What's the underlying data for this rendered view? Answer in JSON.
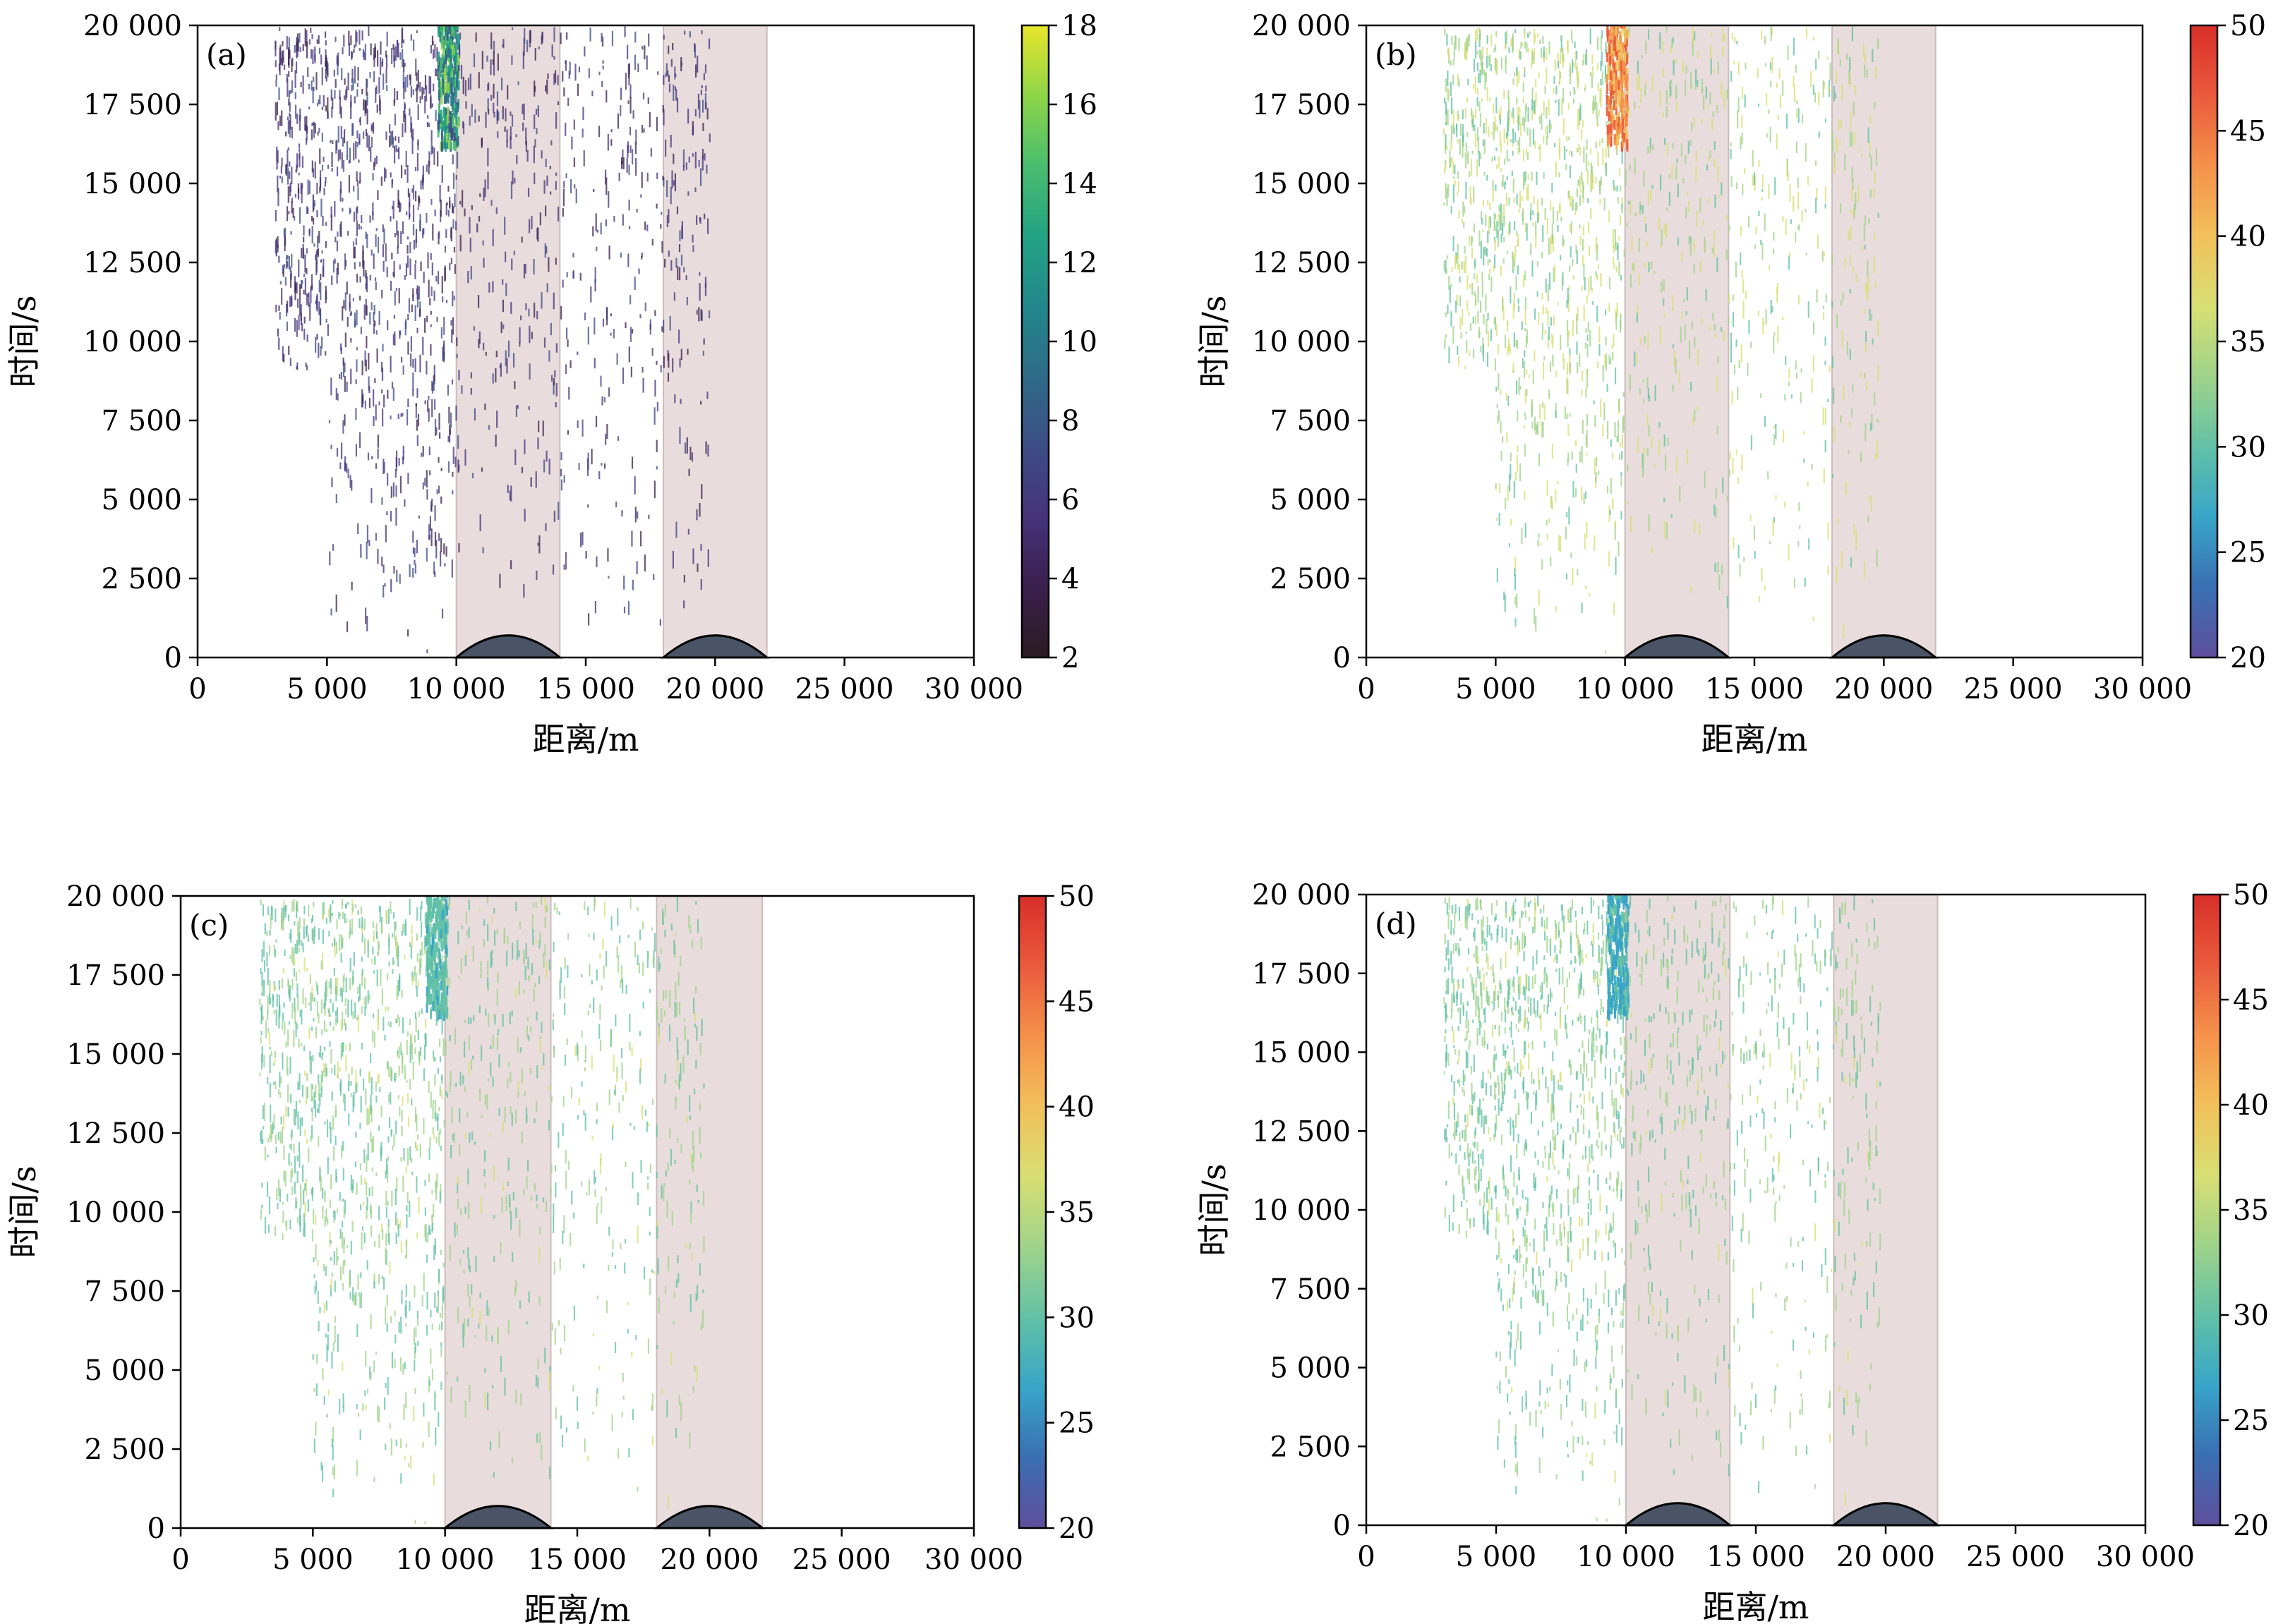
{
  "chart_data": [
    {
      "type": "heatmap",
      "panel_label": "(a)",
      "xlabel": "距离/m",
      "ylabel": "时间/s",
      "xlim": [
        0,
        30000
      ],
      "ylim": [
        0,
        20000
      ],
      "xticks": [
        "0",
        "5 000",
        "10 000",
        "15 000",
        "20 000",
        "25 000",
        "30 000"
      ],
      "yticks": [
        "0",
        "2 500",
        "5 000",
        "7 500",
        "10 000",
        "12 500",
        "15 000",
        "17 500",
        "20 000"
      ],
      "colorbar": {
        "colormap": "viridis",
        "min": 2,
        "max": 18,
        "ticks": [
          "2",
          "4",
          "6",
          "8",
          "10",
          "12",
          "14",
          "16",
          "18"
        ]
      },
      "shaded_regions": [
        [
          10000,
          14000
        ],
        [
          18000,
          22000
        ]
      ],
      "hills": [
        {
          "x_start": 10000,
          "x_end": 14000,
          "peak": 700
        },
        {
          "x_start": 18000,
          "x_end": 22000,
          "peak": 700
        }
      ]
    },
    {
      "type": "heatmap",
      "panel_label": "(b)",
      "xlabel": "距离/m",
      "ylabel": "时间/s",
      "xlim": [
        0,
        30000
      ],
      "ylim": [
        0,
        20000
      ],
      "xticks": [
        "0",
        "5 000",
        "10 000",
        "15 000",
        "20 000",
        "25 000",
        "30 000"
      ],
      "yticks": [
        "0",
        "2 500",
        "5 000",
        "7 500",
        "10 000",
        "12 500",
        "15 000",
        "17 500",
        "20 000"
      ],
      "colorbar": {
        "colormap": "spectral",
        "min": 20,
        "max": 50,
        "ticks": [
          "20",
          "25",
          "30",
          "35",
          "40",
          "45",
          "50"
        ]
      },
      "shaded_regions": [
        [
          10000,
          14000
        ],
        [
          18000,
          22000
        ]
      ],
      "hills": [
        {
          "x_start": 10000,
          "x_end": 14000,
          "peak": 700
        },
        {
          "x_start": 18000,
          "x_end": 22000,
          "peak": 700
        }
      ]
    },
    {
      "type": "heatmap",
      "panel_label": "(c)",
      "xlabel": "距离/m",
      "ylabel": "时间/s",
      "xlim": [
        0,
        30000
      ],
      "ylim": [
        0,
        20000
      ],
      "xticks": [
        "0",
        "5 000",
        "10 000",
        "15 000",
        "20 000",
        "25 000",
        "30 000"
      ],
      "yticks": [
        "0",
        "2 500",
        "5 000",
        "7 500",
        "10 000",
        "12 500",
        "15 000",
        "17 500",
        "20 000"
      ],
      "colorbar": {
        "colormap": "spectral",
        "min": 20,
        "max": 50,
        "ticks": [
          "20",
          "25",
          "30",
          "35",
          "40",
          "45",
          "50"
        ]
      },
      "shaded_regions": [
        [
          10000,
          14000
        ],
        [
          18000,
          22000
        ]
      ],
      "hills": [
        {
          "x_start": 10000,
          "x_end": 14000,
          "peak": 700
        },
        {
          "x_start": 18000,
          "x_end": 22000,
          "peak": 700
        }
      ]
    },
    {
      "type": "heatmap",
      "panel_label": "(d)",
      "xlabel": "距离/m",
      "ylabel": "时间/s",
      "xlim": [
        0,
        30000
      ],
      "ylim": [
        0,
        20000
      ],
      "xticks": [
        "0",
        "5 000",
        "10 000",
        "15 000",
        "20 000",
        "25 000",
        "30 000"
      ],
      "yticks": [
        "0",
        "2 500",
        "5 000",
        "7 500",
        "10 000",
        "12 500",
        "15 000",
        "17 500",
        "20 000"
      ],
      "colorbar": {
        "colormap": "spectral",
        "min": 20,
        "max": 50,
        "ticks": [
          "20",
          "25",
          "30",
          "35",
          "40",
          "45",
          "50"
        ]
      },
      "shaded_regions": [
        [
          10000,
          14000
        ],
        [
          18000,
          22000
        ]
      ],
      "hills": [
        {
          "x_start": 10000,
          "x_end": 14000,
          "peak": 700
        },
        {
          "x_start": 18000,
          "x_end": 22000,
          "peak": 700
        }
      ]
    }
  ]
}
